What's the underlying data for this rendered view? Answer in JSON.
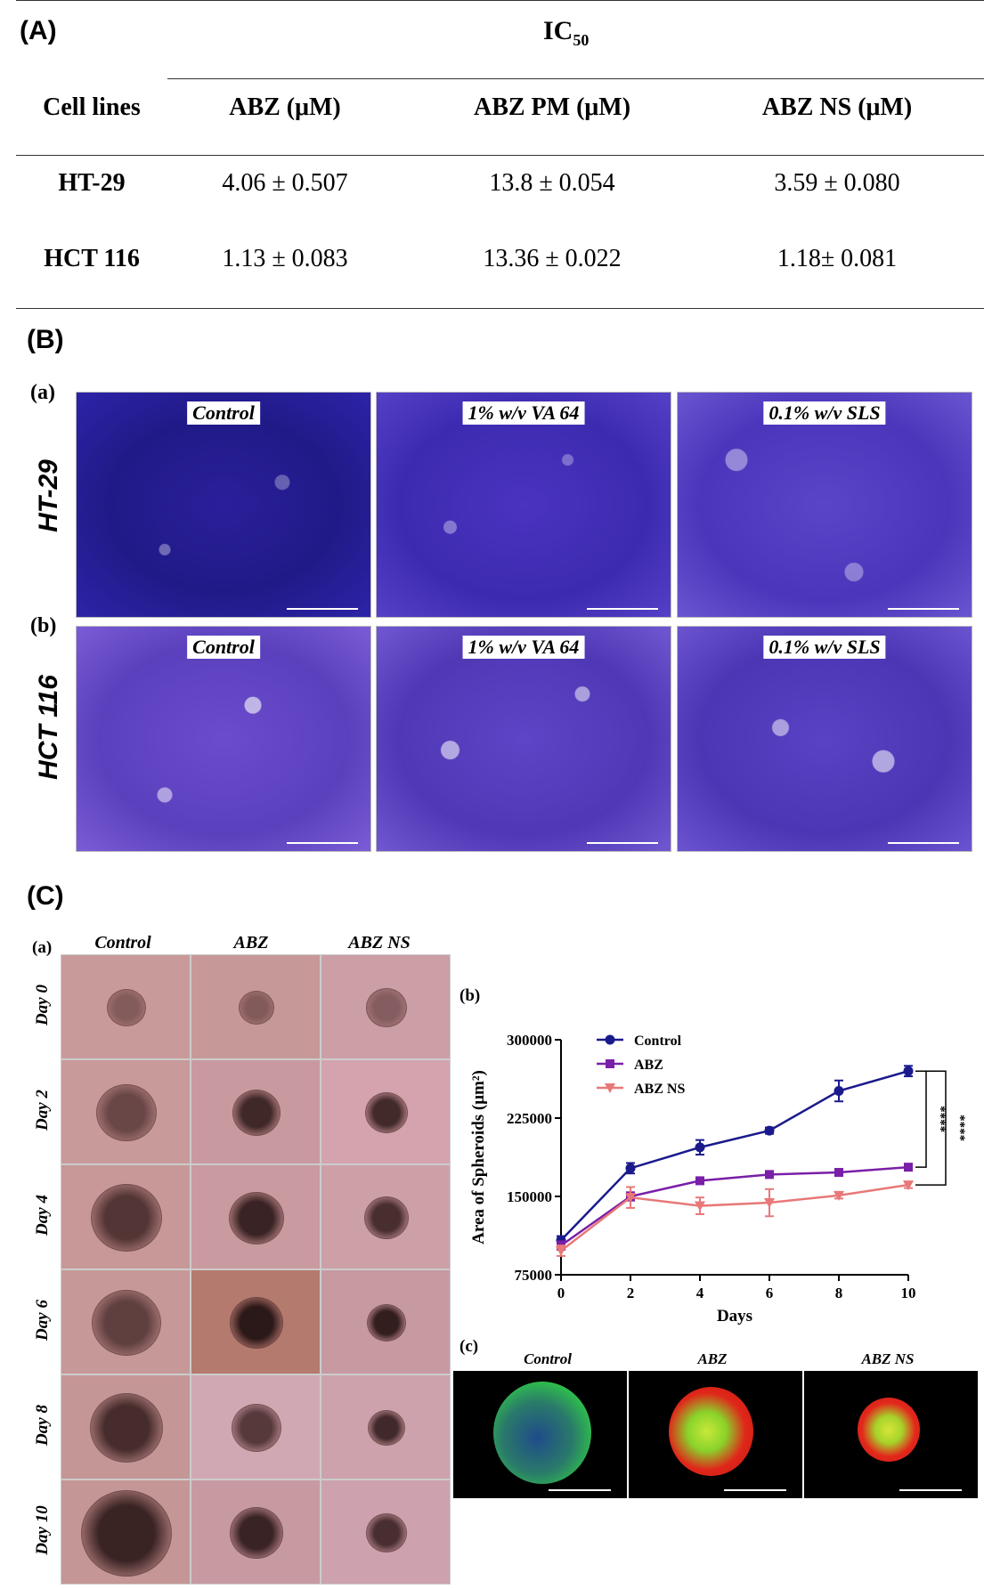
{
  "panelA": {
    "letter": "(A)",
    "ic_label": "IC",
    "ic_sub": "50",
    "headers": [
      "Cell lines",
      "ABZ (μM)",
      "ABZ PM (μM)",
      "ABZ NS (μM)"
    ],
    "rows": [
      [
        "HT-29",
        "4.06 ± 0.507",
        "13.8 ± 0.054",
        "3.59 ± 0.080"
      ],
      [
        "HCT 116",
        "1.13 ± 0.083",
        "13.36 ± 0.022",
        "1.18± 0.081"
      ]
    ]
  },
  "panelB": {
    "letter": "(B)",
    "sub_a": "(a)",
    "sub_b": "(b)",
    "row_a": "HT-29",
    "row_b": "HCT 116",
    "labels": [
      "Control",
      "1% w/v VA 64",
      "0.1% w/v SLS"
    ]
  },
  "panelC": {
    "letter": "(C)",
    "sub_a": "(a)",
    "sub_b": "(b)",
    "sub_c": "(c)",
    "columns": [
      "Control",
      "ABZ",
      "ABZ NS"
    ],
    "days": [
      "Day 0",
      "Day 2",
      "Day 4",
      "Day 6",
      "Day 8",
      "Day 10"
    ],
    "fluo_labels": [
      "Control",
      "ABZ",
      "ABZ NS"
    ]
  },
  "chart_data": {
    "type": "line",
    "xlabel": "Days",
    "ylabel": "Area of Spheroids (μm²)",
    "x": [
      0,
      2,
      4,
      6,
      8,
      10
    ],
    "xticks": [
      "0",
      "2",
      "4",
      "6",
      "8",
      "10"
    ],
    "ylim": [
      75000,
      300000
    ],
    "yticks": [
      "75000",
      "150000",
      "225000",
      "300000"
    ],
    "legend_position": "top-left",
    "significance": [
      "****",
      "****"
    ],
    "series": [
      {
        "name": "Control",
        "color": "#1a1a8c",
        "marker": "circle",
        "values": [
          108000,
          177000,
          197000,
          213000,
          251000,
          270000
        ],
        "errors": [
          4000,
          5000,
          7000,
          3000,
          10000,
          5000
        ]
      },
      {
        "name": "ABZ",
        "color": "#7a1fa8",
        "marker": "square",
        "values": [
          103000,
          150000,
          165000,
          171000,
          173000,
          178000
        ],
        "errors": [
          4000,
          4000,
          3000,
          2000,
          2000,
          2000
        ]
      },
      {
        "name": "ABZ NS",
        "color": "#e87878",
        "marker": "triangle-down",
        "values": [
          98000,
          149000,
          141000,
          144000,
          151000,
          161000
        ],
        "errors": [
          5000,
          10000,
          8000,
          13000,
          3000,
          3000
        ]
      }
    ]
  }
}
